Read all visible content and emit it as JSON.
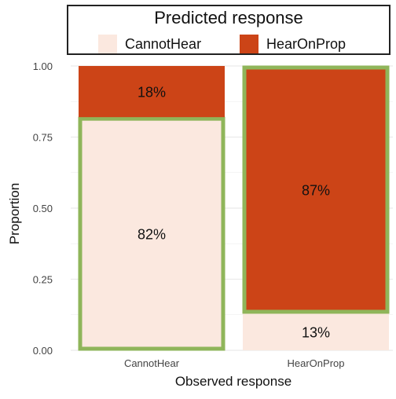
{
  "chart_data": {
    "type": "bar",
    "stacked": true,
    "proportional": true,
    "categories": [
      "CannotHear",
      "HearOnProp"
    ],
    "series": [
      {
        "name": "CannotHear",
        "values": [
          0.82,
          0.13
        ],
        "labels": [
          "82%",
          "13%"
        ],
        "color": "#fbe8df"
      },
      {
        "name": "HearOnProp",
        "values": [
          0.18,
          0.87
        ],
        "labels": [
          "18%",
          "87%"
        ],
        "color": "#cc4417"
      }
    ],
    "highlight_color": "#8fb55a",
    "highlighted_segments": [
      {
        "category": "CannotHear",
        "series": "CannotHear"
      },
      {
        "category": "HearOnProp",
        "series": "HearOnProp"
      }
    ],
    "xlabel": "Observed response",
    "ylabel": "Proportion",
    "ylim": [
      0,
      1
    ],
    "yticks": [
      "0.00",
      "0.25",
      "0.50",
      "0.75",
      "1.00"
    ],
    "grid": true,
    "legend": {
      "title": "Predicted response",
      "placement": "top",
      "entries": [
        "CannotHear",
        "HearOnProp"
      ]
    }
  }
}
